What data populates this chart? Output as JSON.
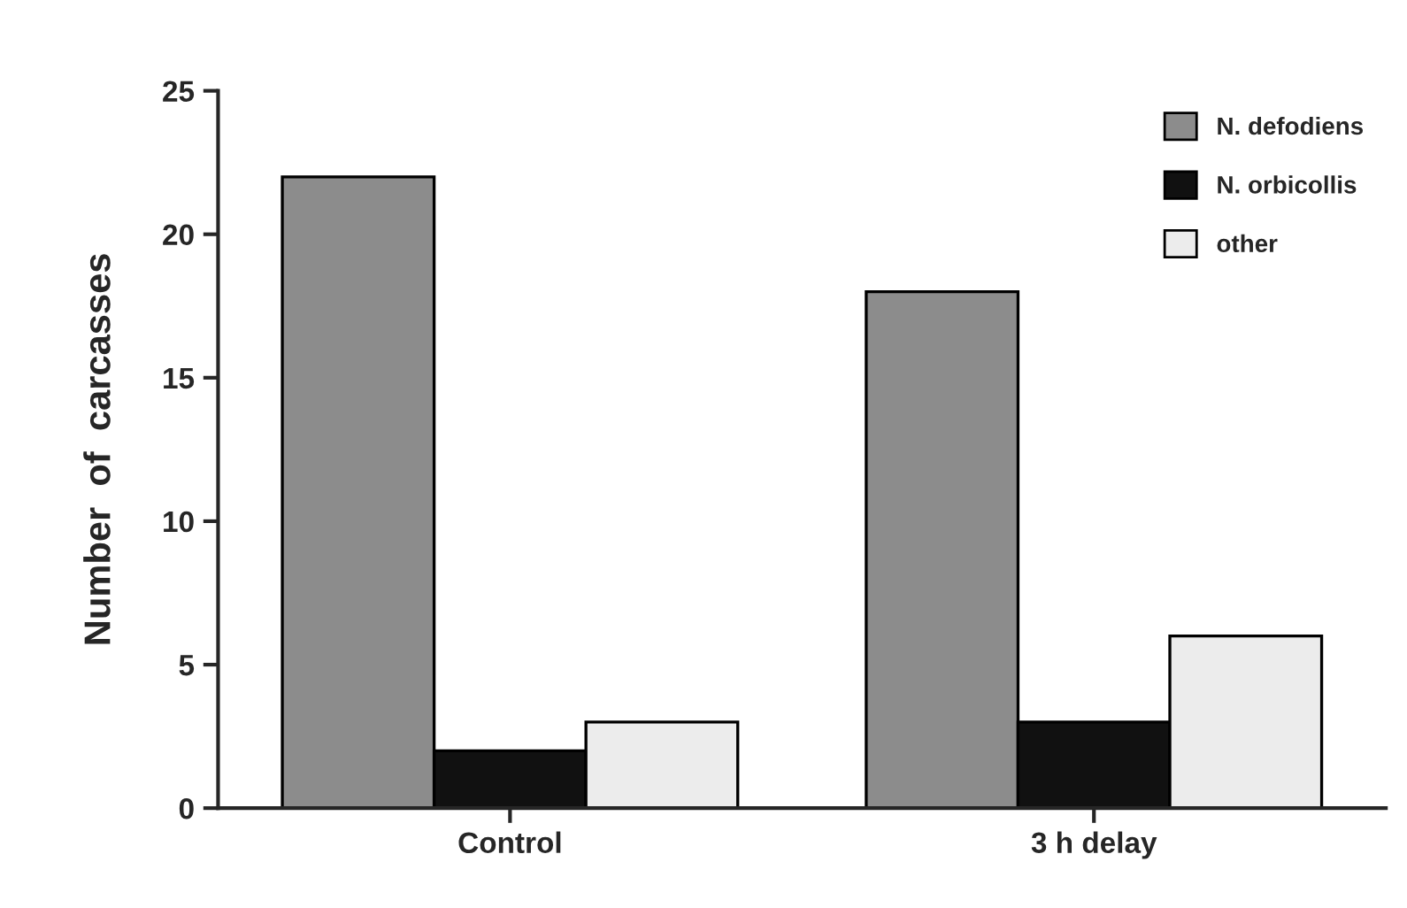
{
  "chart_data": {
    "type": "bar",
    "ylabel": "Number  of  carcasses",
    "categories": [
      "Control",
      "3 h delay"
    ],
    "series": [
      {
        "name": "N. defodiens",
        "color": "#8c8c8c",
        "values": [
          22,
          18
        ]
      },
      {
        "name": "N. orbicollis",
        "color": "#111111",
        "values": [
          2,
          3
        ]
      },
      {
        "name": "other",
        "color": "#ececec",
        "values": [
          3,
          6
        ]
      }
    ],
    "ylim": [
      0,
      25
    ],
    "yticks": [
      0,
      5,
      10,
      15,
      20,
      25
    ],
    "grid": false,
    "legend": "top right"
  }
}
